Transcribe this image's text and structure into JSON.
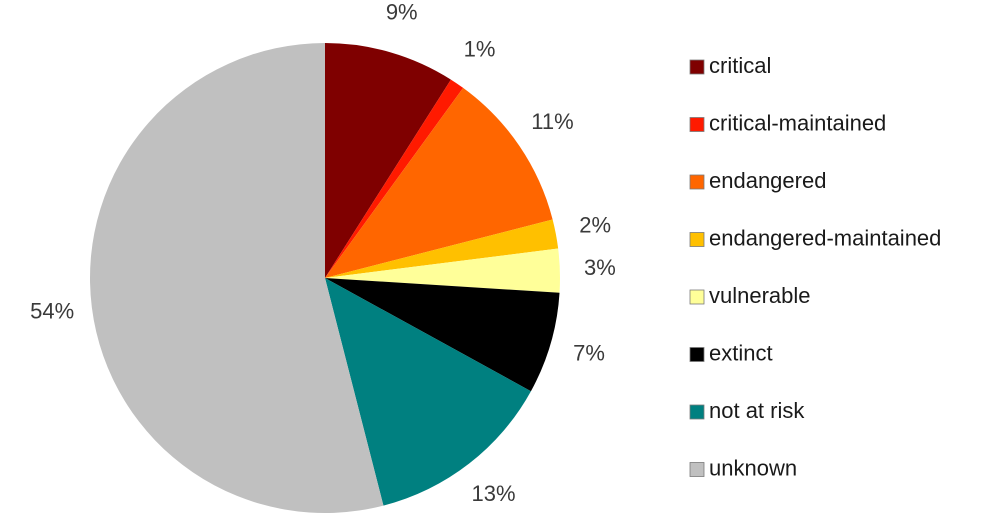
{
  "chart_data": {
    "type": "pie",
    "title": "",
    "start_angle_deg": 0,
    "direction": "clockwise",
    "legend_position": "right",
    "slices": [
      {
        "label": "critical",
        "value": 9,
        "display": "9%",
        "color": "#7f0000"
      },
      {
        "label": "critical-maintained",
        "value": 1,
        "display": "1%",
        "color": "#ff1a00"
      },
      {
        "label": "endangered",
        "value": 11,
        "display": "11%",
        "color": "#ff6600"
      },
      {
        "label": "endangered-maintained",
        "value": 2,
        "display": "2%",
        "color": "#ffc000"
      },
      {
        "label": "vulnerable",
        "value": 3,
        "display": "3%",
        "color": "#ffff99"
      },
      {
        "label": "extinct",
        "value": 7,
        "display": "7%",
        "color": "#000000"
      },
      {
        "label": "not at risk",
        "value": 13,
        "display": "13%",
        "color": "#008080"
      },
      {
        "label": "unknown",
        "value": 54,
        "display": "54%",
        "color": "#c0c0c0"
      }
    ]
  }
}
